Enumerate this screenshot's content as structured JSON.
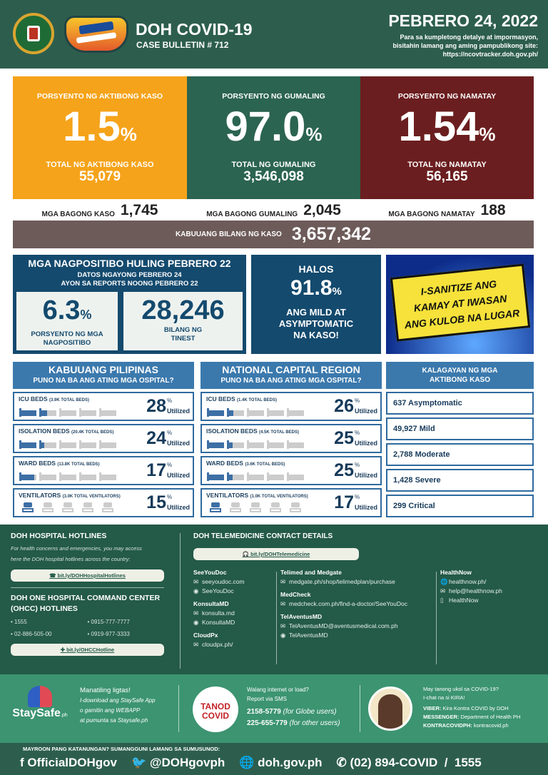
{
  "header": {
    "title": "DOH COVID-19",
    "bulletin": "CASE BULLETIN # 712",
    "date": "PEBRERO 24, 2022",
    "note1": "Para sa kumpletong detalye at impormasyon,",
    "note2": "bisitahin lamang ang aming pampublikong site:",
    "site": "https://ncovtracker.doh.gov.ph/",
    "logo_seal_text": "REPUBLIC OF THE PHILIPPINES DEPARTMENT OF HEALTH",
    "logo_bida_text": "BIDA SOLUSYON sa COVID-19"
  },
  "stats": [
    {
      "label": "PORSYENTO NG AKTIBONG KASO",
      "pct": "1.5",
      "total_label": "TOTAL NG AKTIBONG KASO",
      "total": "55,079",
      "new_label": "MGA BAGONG KASO",
      "new": "1,745",
      "color": "#f5a31a"
    },
    {
      "label": "PORSYENTO NG GUMALING",
      "pct": "97.0",
      "total_label": "TOTAL NG GUMALING",
      "total": "3,546,098",
      "new_label": "MGA BAGONG GUMALING",
      "new": "2,045",
      "color": "#2b6450"
    },
    {
      "label": "PORSYENTO NG NAMATAY",
      "pct": "1.54",
      "total_label": "TOTAL NG NAMATAY",
      "total": "56,165",
      "new_label": "MGA BAGONG NAMATAY",
      "new": "188",
      "color": "#6b1e1f"
    }
  ],
  "pct_sign": "%",
  "total_cases": {
    "label": "KABUUANG BILANG NG KASO",
    "value": "3,657,342"
  },
  "positivity": {
    "title": "MGA NAGPOSITIBO HULING PEBRERO 22",
    "sub1": "DATOS NGAYONG PEBRERO 24",
    "sub2": "AYON SA REPORTS NOONG PEBRERO 22",
    "rate": "6.3",
    "rate_label1": "PORSYENTO NG MGA",
    "rate_label2": "NAGPOSITIBO",
    "tested": "28,246",
    "tested_label1": "BILANG NG",
    "tested_label2": "TINEST"
  },
  "mild": {
    "l1": "HALOS",
    "pct": "91.8",
    "l2": "ANG MILD AT",
    "l3": "ASYMPTOMATIC",
    "l4": "NA KASO!"
  },
  "comic": {
    "line1": "I-SANITIZE ANG",
    "line2": "KAMAY AT IWASAN",
    "line3": "ANG KULOB NA LUGAR"
  },
  "utilized": "Utilized",
  "hospitals": [
    {
      "title": "KABUUANG PILIPINAS",
      "sub": "PUNO NA BA ANG ATING MGA OSPITAL?",
      "rows": [
        {
          "name": "ICU BEDS",
          "total": "(3.9K TOTAL BEDS)",
          "pct": 28,
          "type": "bed"
        },
        {
          "name": "ISOLATION BEDS",
          "total": "(20.4K TOTAL BEDS)",
          "pct": 24,
          "type": "bed"
        },
        {
          "name": "WARD BEDS",
          "total": "(13.8K TOTAL BEDS)",
          "pct": 17,
          "type": "bed"
        },
        {
          "name": "VENTILATORS",
          "total": "(3.0K TOTAL VENTILATORS)",
          "pct": 15,
          "type": "vent"
        }
      ]
    },
    {
      "title": "NATIONAL CAPITAL REGION",
      "sub": "PUNO NA BA ANG ATING MGA OSPITAL?",
      "rows": [
        {
          "name": "ICU BEDS",
          "total": "(1.4K TOTAL BEDS)",
          "pct": 26,
          "type": "bed"
        },
        {
          "name": "ISOLATION BEDS",
          "total": "(4.5K TOTAL BEDS)",
          "pct": 25,
          "type": "bed"
        },
        {
          "name": "WARD BEDS",
          "total": "(3.6K TOTAL BEDS)",
          "pct": 25,
          "type": "bed"
        },
        {
          "name": "VENTILATORS",
          "total": "(1.0K TOTAL VENTILATORS)",
          "pct": 17,
          "type": "vent"
        }
      ]
    }
  ],
  "active": {
    "title1": "KALAGAYAN NG MGA",
    "title2": "AKTIBONG KASO",
    "items": [
      "637 Asymptomatic",
      "49,927 Mild",
      "2,788 Moderate",
      "1,428 Severe",
      "299 Critical"
    ]
  },
  "hotlines": {
    "title": "DOH HOSPITAL HOTLINES",
    "desc1": "For health concerns and emergencies, you may access",
    "desc2": "here the DOH hospital hotlines across the country:",
    "link": "bit.ly/DOHHospitalHotlines",
    "ohcc_title1": "DOH ONE HOSPITAL COMMAND CENTER",
    "ohcc_title2": "(OHCC) HOTLINES",
    "numbers": [
      "• 1555",
      "• 0915-777-7777",
      "• 02-886-505-00",
      "• 0919-977-3333"
    ],
    "ohcc_link": "bit.ly/OHCCHotline"
  },
  "tele": {
    "title": "DOH TELEMEDICINE CONTACT DETAILS",
    "link": "bit.ly/DOHTelemedicine",
    "cols": [
      [
        {
          "name": "SeeYouDoc",
          "items": [
            [
              "mail",
              "seeyoudoc.com"
            ],
            [
              "messenger",
              "SeeYouDoc"
            ]
          ]
        },
        {
          "name": "KonsultaMD",
          "items": [
            [
              "mail",
              "konsulta.md"
            ],
            [
              "messenger",
              "KonsultaMD"
            ]
          ]
        },
        {
          "name": "CloudPx",
          "items": [
            [
              "mail",
              "cloudpx.ph/"
            ]
          ]
        }
      ],
      [
        {
          "name": "Telimed and Medgate",
          "items": [
            [
              "mail",
              "medgate.ph/shop/telimedplan/purchase"
            ]
          ]
        },
        {
          "name": "MedCheck",
          "items": [
            [
              "mail",
              "medcheck.com.ph/find-a-doctor/SeeYouDoc"
            ]
          ]
        },
        {
          "name": "TelAventusMD",
          "items": [
            [
              "mail",
              "TelAventusMD@aventusmedical.com.ph"
            ],
            [
              "messenger",
              "TelAventusMD"
            ]
          ]
        }
      ],
      [
        {
          "name": "HealthNow",
          "items": [
            [
              "globe",
              "healthnow.ph/"
            ],
            [
              "mail",
              "help@healthnow.ph"
            ],
            [
              "phone",
              "HealthNow"
            ]
          ]
        }
      ]
    ]
  },
  "staysafe": {
    "logo": "StaySafe",
    "logo_sub": ".ph",
    "title": "Manatiling ligtas!",
    "l1": "I-download ang StaySafe App",
    "l2": "o gamitin ang WEBAPP",
    "l3": "at pumunta sa Staysafe.ph"
  },
  "tanod": {
    "logo1": "TANOD",
    "logo2": "COVID",
    "l1": "Walang internet or load?",
    "l2": "Report via SMS",
    "n1": "2158-5779",
    "n1s": "(for Globe users)",
    "n2": "225-655-779",
    "n2s": "(for other users)"
  },
  "kira": {
    "l1": "May tanong ukol sa COVID-19?",
    "l2": "I-chat na si KIRA!",
    "viber_k": "VIBER:",
    "viber": "Kira Kontra COVID by DOH",
    "msg_k": "MESSENGER:",
    "msg": "Department of Health PH",
    "kc_k": "KONTRACOVIDPH:",
    "kc": "kontracovid.ph"
  },
  "footer": {
    "prompt": "MAYROON PANG KATANUNGAN? SUMANGGUNI LAMANG SA SUMUSUNOD:",
    "fb": "OfficialDOHgov",
    "tw": "@DOHgovph",
    "web": "doh.gov.ph",
    "phone": "(02) 894-COVID  /  1555"
  }
}
